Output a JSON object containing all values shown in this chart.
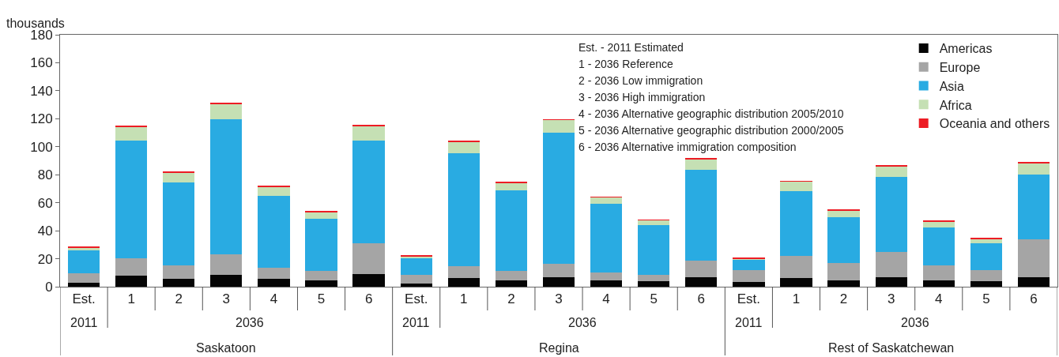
{
  "chart_data": {
    "type": "bar",
    "stacked": true,
    "ylabel": "thousands",
    "categories": [
      "Est.",
      "1",
      "2",
      "3",
      "4",
      "5",
      "6",
      "Est.",
      "1",
      "2",
      "3",
      "4",
      "5",
      "6",
      "Est.",
      "1",
      "2",
      "3",
      "4",
      "5",
      "6"
    ],
    "series": [
      {
        "name": "Americas",
        "color": "#050505",
        "values": [
          2.8,
          7.9,
          5.6,
          8.5,
          5.6,
          4.5,
          9.0,
          2.3,
          6.2,
          4.5,
          6.8,
          4.5,
          3.9,
          6.8,
          3.4,
          6.2,
          4.5,
          6.8,
          4.5,
          3.9,
          6.8
        ]
      },
      {
        "name": "Europe",
        "color": "#a5a5a5",
        "values": [
          6.8,
          12.4,
          9.6,
          14.6,
          7.9,
          6.8,
          22.0,
          6.2,
          8.5,
          6.8,
          9.6,
          5.7,
          4.6,
          11.8,
          8.4,
          15.8,
          12.4,
          18.0,
          10.7,
          7.9,
          27.1
        ]
      },
      {
        "name": "Asia",
        "color": "#29abe2",
        "values": [
          16.4,
          84.1,
          59.3,
          96.5,
          51.4,
          37.2,
          73.4,
          11.8,
          80.7,
          57.5,
          93.6,
          49.1,
          35.5,
          64.9,
          7.4,
          46.3,
          32.8,
          53.6,
          27.1,
          19.2,
          46.2
        ]
      },
      {
        "name": "Africa",
        "color": "#c5e0b4",
        "values": [
          2.2,
          9.6,
          7.3,
          10.8,
          6.2,
          4.7,
          10.2,
          1.7,
          8.1,
          5.3,
          9.2,
          4.7,
          3.4,
          7.9,
          1.1,
          6.9,
          5.0,
          7.9,
          4.5,
          3.4,
          7.9
        ]
      },
      {
        "name": "Oceania and others",
        "color": "#ed1c24",
        "values": [
          0.6,
          1.0,
          0.2,
          1.1,
          0.6,
          0.5,
          1.1,
          0.6,
          0.4,
          0.4,
          0.4,
          0.3,
          0.5,
          0.6,
          0.6,
          0.4,
          0.6,
          0.6,
          0.6,
          0.6,
          1.2
        ]
      }
    ],
    "ylim": [
      0,
      180
    ],
    "yticks": [
      0,
      20,
      40,
      60,
      80,
      100,
      120,
      140,
      160,
      180
    ],
    "legend": "top right",
    "annotations": [
      "2011",
      "2036",
      "Saskatoon",
      "2011",
      "2036",
      "Regina",
      "2011",
      "2036",
      "Rest of Saskatchewan",
      "Est. - 2011 Estimated",
      "1 - 2036 Reference",
      "2 - 2036 Low immigration",
      "3 - 2036 High immigration",
      "4 - 2036 Alternative geographic distribution 2005/2010",
      "5 - 2036 Alternative geographic distribution 2000/2005",
      "6 - 2036 Alternative immigration composition"
    ]
  }
}
